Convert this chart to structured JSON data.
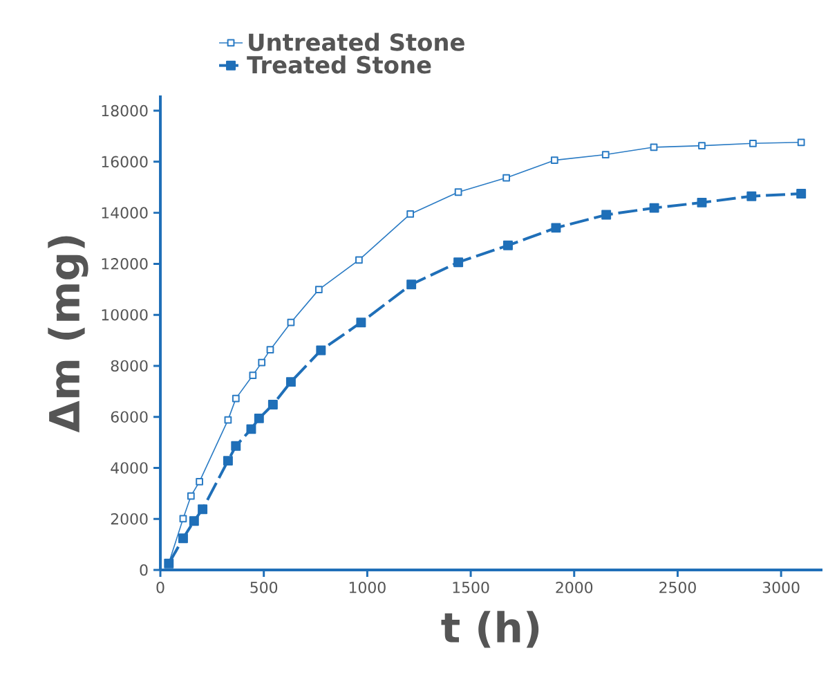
{
  "chart_data": {
    "type": "line",
    "xlabel": "t (h)",
    "ylabel": "Δm (mg)",
    "xlim": [
      0,
      3200
    ],
    "ylim": [
      0,
      18600
    ],
    "xticks": [
      0,
      500,
      1000,
      1500,
      2000,
      2500,
      3000
    ],
    "yticks": [
      0,
      2000,
      4000,
      6000,
      8000,
      10000,
      12000,
      14000,
      16000,
      18000
    ],
    "grid": false,
    "legend": "top",
    "marker": "square",
    "series": [
      {
        "name": "Untreated Stone",
        "color": "#2a7bc4",
        "line_style": "solid",
        "x": [
          40,
          110,
          148,
          189,
          327,
          365,
          447,
          490,
          531,
          631,
          766,
          960,
          1208,
          1440,
          1672,
          1905,
          2152,
          2385,
          2617,
          2864,
          3097
        ],
        "values": [
          250,
          2010,
          2900,
          3460,
          5880,
          6720,
          7630,
          8130,
          8630,
          9700,
          10990,
          12150,
          13950,
          14810,
          15370,
          16060,
          16280,
          16570,
          16630,
          16720,
          16760
        ]
      },
      {
        "name": "Treated Stone",
        "color": "#1f6fb8",
        "line_style": "dashed",
        "x": [
          41,
          110,
          163,
          204,
          327,
          365,
          439,
          477,
          544,
          631,
          776,
          970,
          1213,
          1440,
          1680,
          1912,
          2155,
          2387,
          2617,
          2857,
          3097
        ],
        "values": [
          250,
          1240,
          1920,
          2380,
          4280,
          4860,
          5520,
          5940,
          6480,
          7370,
          8610,
          9700,
          11190,
          12060,
          12720,
          13410,
          13920,
          14190,
          14400,
          14650,
          14750
        ]
      }
    ]
  }
}
